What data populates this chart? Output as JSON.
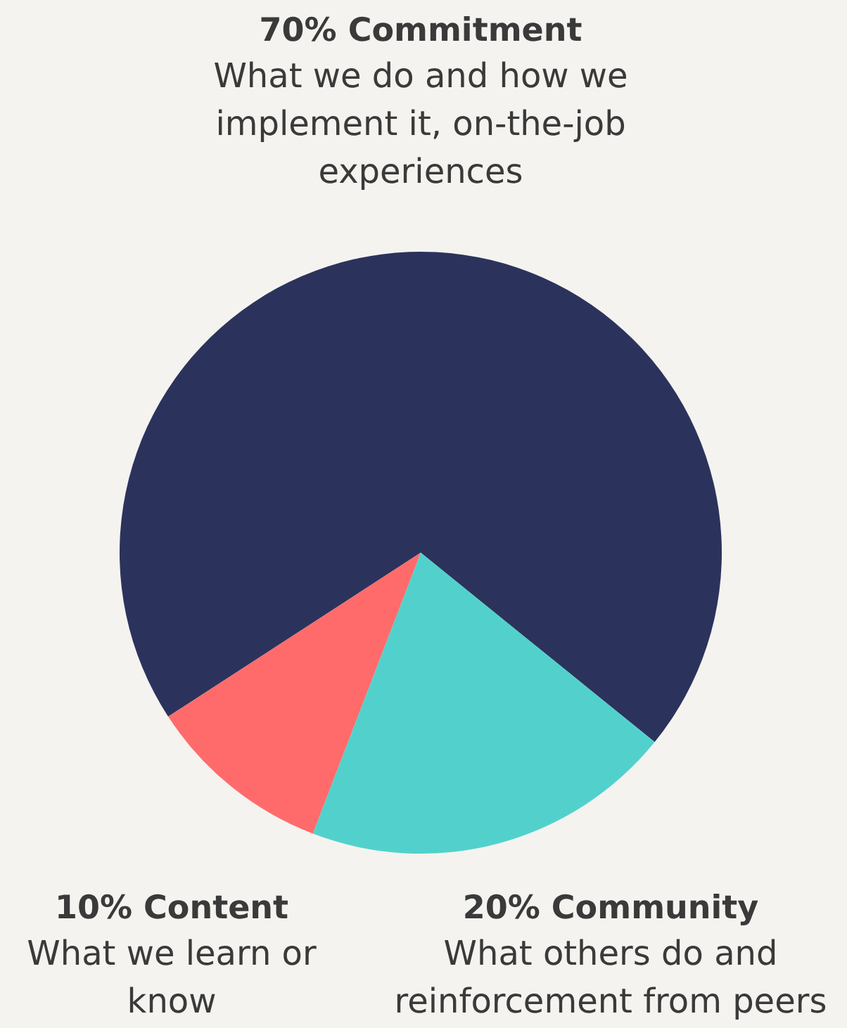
{
  "chart_data": {
    "type": "pie",
    "categories": [
      "Commitment",
      "Community",
      "Content"
    ],
    "values": [
      70,
      20,
      10
    ],
    "value_labels": [
      "70%",
      "20%",
      "10%"
    ],
    "colors": [
      "#2b335c",
      "#52d1cc",
      "#ff6b6b"
    ],
    "annotations": [
      "What we do and how we\nimplement it, on-the-job\nexperiences",
      "What others do and\nreinforcement from peers",
      "What we learn or\nknow"
    ]
  }
}
